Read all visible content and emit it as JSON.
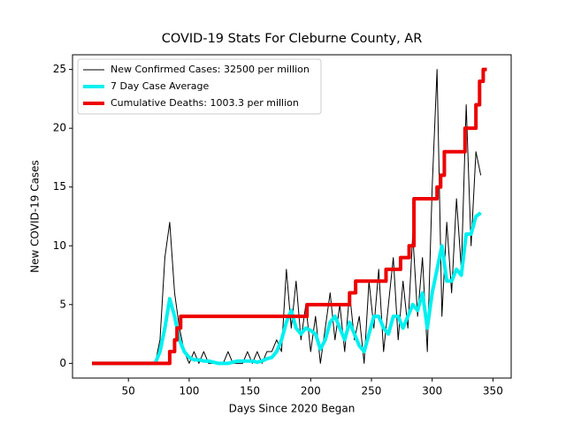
{
  "chart_data": {
    "type": "line",
    "title": "COVID-19 Stats For Cleburne County, AR",
    "x_label": "Days Since 2020 Began",
    "y_label": "New COVID-19 Cases",
    "x": [
      20,
      24,
      28,
      32,
      36,
      40,
      44,
      48,
      52,
      56,
      60,
      64,
      68,
      72,
      76,
      80,
      84,
      88,
      92,
      96,
      100,
      104,
      108,
      112,
      116,
      120,
      124,
      128,
      132,
      136,
      140,
      144,
      148,
      152,
      156,
      160,
      164,
      168,
      172,
      176,
      180,
      184,
      188,
      192,
      196,
      200,
      204,
      208,
      212,
      216,
      220,
      224,
      228,
      232,
      236,
      240,
      244,
      248,
      252,
      256,
      260,
      264,
      268,
      272,
      276,
      280,
      284,
      288,
      292,
      296,
      300,
      304,
      308,
      312,
      316,
      320,
      324,
      328,
      332,
      336,
      340
    ],
    "series": [
      {
        "name": "New Confirmed Cases: 32500 per million",
        "color": "#000000",
        "width": 1,
        "values": [
          0,
          0,
          0,
          0,
          0,
          0,
          0,
          0,
          0,
          0,
          0,
          0,
          0,
          0,
          2,
          9,
          12,
          6,
          3,
          1,
          0,
          1,
          0,
          1,
          0,
          0,
          0,
          0,
          1,
          0,
          0,
          0,
          1,
          0,
          1,
          0,
          1,
          1,
          2,
          1,
          8,
          3,
          7,
          2,
          5,
          1,
          4,
          0,
          3,
          6,
          2,
          5,
          1,
          6,
          2,
          4,
          0,
          7,
          3,
          8,
          1,
          5,
          9,
          2,
          7,
          3,
          11,
          4,
          9,
          1,
          15,
          25,
          4,
          12,
          6,
          14,
          8,
          22,
          10,
          18,
          16
        ]
      },
      {
        "name": "7 Day Case Average",
        "color": "#00f0f0",
        "width": 4,
        "values": [
          0,
          0,
          0,
          0,
          0,
          0,
          0,
          0,
          0,
          0,
          0,
          0,
          0,
          0,
          1,
          3,
          5.5,
          4,
          2,
          1,
          0.5,
          0.3,
          0.3,
          0.2,
          0.2,
          0.1,
          0,
          0,
          0,
          0.1,
          0.2,
          0.2,
          0.2,
          0.2,
          0.1,
          0.2,
          0.4,
          0.5,
          1,
          2,
          3.5,
          4.5,
          3,
          2.5,
          3,
          2.8,
          2.5,
          1.2,
          2,
          3.5,
          4,
          3,
          2,
          3.5,
          2.5,
          1.5,
          1,
          2.5,
          4,
          4,
          3,
          2.5,
          4,
          4,
          3,
          4,
          5,
          4.5,
          6,
          3,
          6,
          8,
          10,
          7,
          7,
          8,
          7.5,
          11,
          11,
          12.5,
          12.8
        ]
      },
      {
        "name": "Cumulative Deaths: 1003.3 per million",
        "color": "#ee0000",
        "width": 4,
        "steps": true,
        "x": [
          20,
          84,
          88,
          90,
          93,
          197,
          232,
          237,
          262,
          274,
          281,
          285,
          304,
          307,
          310,
          327,
          336,
          339,
          342,
          345
        ],
        "values": [
          0,
          1,
          2,
          3,
          4,
          5,
          6,
          7,
          8,
          9,
          10,
          14,
          15,
          16,
          18,
          20,
          22,
          24,
          25,
          25
        ]
      }
    ],
    "xlim": [
      4,
      365
    ],
    "ylim": [
      -1.25,
      26.25
    ],
    "xticks": [
      50,
      100,
      150,
      200,
      250,
      300,
      350
    ],
    "yticks": [
      0,
      5,
      10,
      15,
      20,
      25
    ],
    "legend": "upper left"
  }
}
